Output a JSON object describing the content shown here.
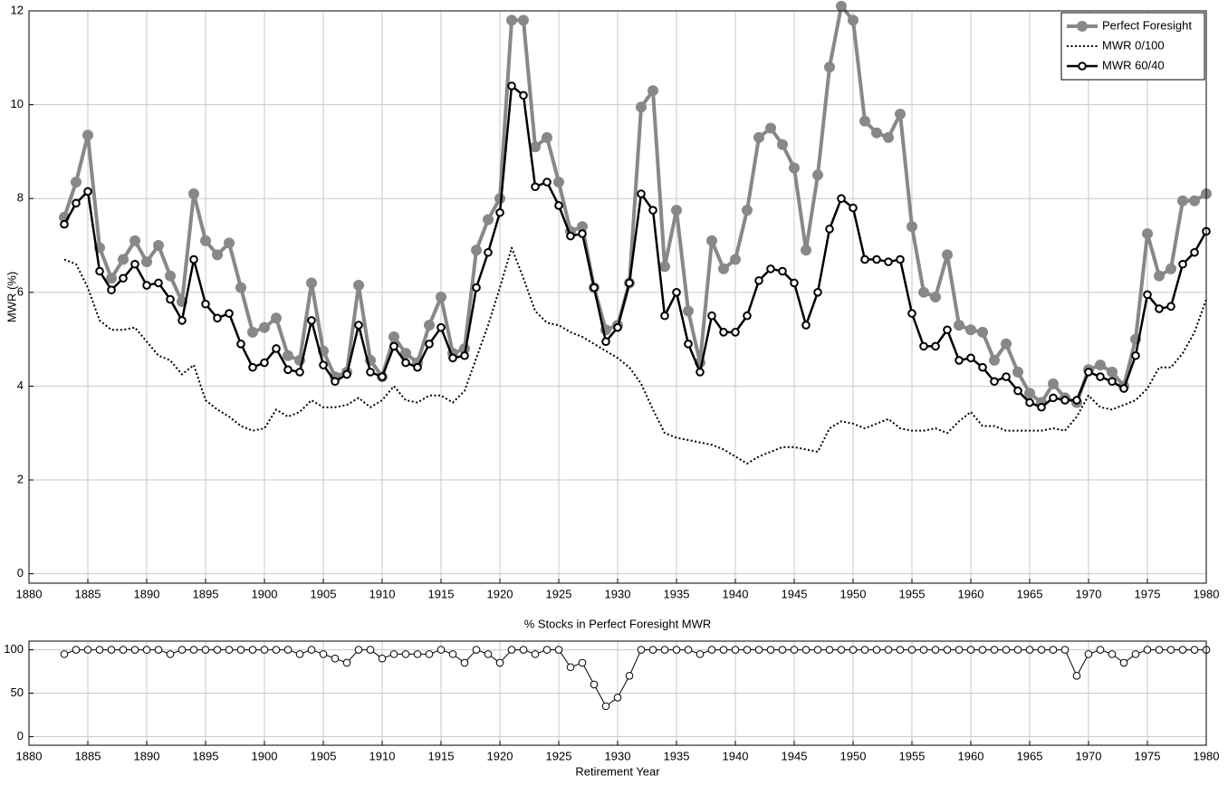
{
  "chart_data": [
    {
      "type": "line",
      "ylabel": "MWR (%)",
      "x": [
        1883,
        1884,
        1885,
        1886,
        1887,
        1888,
        1889,
        1890,
        1891,
        1892,
        1893,
        1894,
        1895,
        1896,
        1897,
        1898,
        1899,
        1900,
        1901,
        1902,
        1903,
        1904,
        1905,
        1906,
        1907,
        1908,
        1909,
        1910,
        1911,
        1912,
        1913,
        1914,
        1915,
        1916,
        1917,
        1918,
        1919,
        1920,
        1921,
        1922,
        1923,
        1924,
        1925,
        1926,
        1927,
        1928,
        1929,
        1930,
        1931,
        1932,
        1933,
        1934,
        1935,
        1936,
        1937,
        1938,
        1939,
        1940,
        1941,
        1942,
        1943,
        1944,
        1945,
        1946,
        1947,
        1948,
        1949,
        1950,
        1951,
        1952,
        1953,
        1954,
        1955,
        1956,
        1957,
        1958,
        1959,
        1960,
        1961,
        1962,
        1963,
        1964,
        1965,
        1966,
        1967,
        1968,
        1969,
        1970,
        1971,
        1972,
        1973,
        1974,
        1975,
        1976,
        1977,
        1978,
        1979,
        1980
      ],
      "series": [
        {
          "name": "Perfect Foresight",
          "color": "#888888",
          "linewidth": 4,
          "linestyle": "solid",
          "marker": "o",
          "marker_fill": "#888888",
          "values": [
            7.6,
            8.35,
            9.35,
            6.95,
            6.3,
            6.7,
            7.1,
            6.65,
            7.0,
            6.35,
            5.8,
            8.1,
            7.1,
            6.8,
            7.05,
            6.1,
            5.15,
            5.25,
            5.45,
            4.65,
            4.55,
            6.2,
            4.75,
            4.2,
            4.3,
            6.15,
            4.55,
            4.2,
            5.05,
            4.7,
            4.5,
            5.3,
            5.9,
            4.7,
            4.8,
            6.9,
            7.55,
            8.0,
            11.8,
            11.8,
            9.1,
            9.3,
            8.35,
            7.3,
            7.4,
            6.1,
            5.2,
            5.3,
            6.2,
            9.95,
            10.3,
            6.55,
            7.75,
            5.6,
            4.5,
            7.1,
            6.5,
            6.7,
            7.75,
            9.3,
            9.5,
            9.15,
            8.65,
            6.9,
            8.5,
            10.8,
            12.1,
            11.8,
            9.65,
            9.4,
            9.3,
            9.8,
            7.4,
            6.0,
            5.9,
            6.8,
            5.3,
            5.2,
            5.15,
            4.55,
            4.9,
            4.3,
            3.85,
            3.65,
            4.05,
            3.75,
            3.65,
            4.35,
            4.45,
            4.3,
            4.0,
            5.0,
            7.25,
            6.35,
            6.5,
            7.95,
            7.95,
            8.1
          ]
        },
        {
          "name": "MWR 0/100",
          "color": "#000000",
          "linewidth": 2,
          "linestyle": "dotted",
          "values": [
            6.7,
            6.6,
            6.1,
            5.4,
            5.2,
            5.2,
            5.25,
            4.95,
            4.65,
            4.55,
            4.25,
            4.45,
            3.7,
            3.5,
            3.35,
            3.15,
            3.05,
            3.1,
            3.5,
            3.35,
            3.45,
            3.7,
            3.55,
            3.55,
            3.6,
            3.75,
            3.55,
            3.7,
            4.0,
            3.7,
            3.65,
            3.8,
            3.8,
            3.65,
            3.9,
            4.6,
            5.3,
            6.1,
            6.95,
            6.3,
            5.6,
            5.35,
            5.3,
            5.15,
            5.05,
            4.9,
            4.75,
            4.6,
            4.4,
            4.05,
            3.5,
            3.0,
            2.9,
            2.85,
            2.8,
            2.75,
            2.65,
            2.5,
            2.35,
            2.5,
            2.6,
            2.7,
            2.7,
            2.65,
            2.6,
            3.1,
            3.25,
            3.2,
            3.1,
            3.2,
            3.3,
            3.1,
            3.05,
            3.05,
            3.1,
            3.0,
            3.25,
            3.45,
            3.15,
            3.15,
            3.05,
            3.05,
            3.05,
            3.05,
            3.1,
            3.05,
            3.35,
            3.8,
            3.55,
            3.5,
            3.6,
            3.7,
            3.95,
            4.4,
            4.4,
            4.7,
            5.15,
            5.85
          ]
        },
        {
          "name": "MWR 60/40",
          "color": "#000000",
          "linewidth": 2.5,
          "linestyle": "solid",
          "marker": "o",
          "marker_fill": "#ffffff",
          "values": [
            7.45,
            7.9,
            8.15,
            6.45,
            6.05,
            6.3,
            6.6,
            6.15,
            6.2,
            5.85,
            5.4,
            6.7,
            5.75,
            5.45,
            5.55,
            4.9,
            4.4,
            4.5,
            4.8,
            4.35,
            4.3,
            5.4,
            4.45,
            4.1,
            4.25,
            5.3,
            4.3,
            4.2,
            4.85,
            4.5,
            4.4,
            4.9,
            5.25,
            4.6,
            4.65,
            6.1,
            6.85,
            7.7,
            10.4,
            10.2,
            8.25,
            8.35,
            7.85,
            7.2,
            7.25,
            6.1,
            4.95,
            5.25,
            6.2,
            8.1,
            7.75,
            5.5,
            6.0,
            4.9,
            4.3,
            5.5,
            5.15,
            5.15,
            5.5,
            6.25,
            6.5,
            6.45,
            6.2,
            5.3,
            6.0,
            7.35,
            8.0,
            7.8,
            6.7,
            6.7,
            6.65,
            6.7,
            5.55,
            4.85,
            4.85,
            5.2,
            4.55,
            4.6,
            4.4,
            4.1,
            4.2,
            3.9,
            3.65,
            3.55,
            3.75,
            3.7,
            3.7,
            4.3,
            4.2,
            4.1,
            3.95,
            4.65,
            5.95,
            5.65,
            5.7,
            6.6,
            6.85,
            7.3
          ]
        }
      ],
      "xlim": [
        1880,
        1980
      ],
      "xticks": [
        1880,
        1885,
        1890,
        1895,
        1900,
        1905,
        1910,
        1915,
        1920,
        1925,
        1930,
        1935,
        1940,
        1945,
        1950,
        1955,
        1960,
        1965,
        1970,
        1975,
        1980
      ],
      "ylim": [
        -0.2,
        12
      ],
      "yticks": [
        0,
        2,
        4,
        6,
        8,
        10,
        12
      ],
      "grid": true,
      "legend": "upper right"
    },
    {
      "type": "line",
      "title": "% Stocks in Perfect Foresight MWR",
      "xlabel": "Retirement Year",
      "x": [
        1883,
        1884,
        1885,
        1886,
        1887,
        1888,
        1889,
        1890,
        1891,
        1892,
        1893,
        1894,
        1895,
        1896,
        1897,
        1898,
        1899,
        1900,
        1901,
        1902,
        1903,
        1904,
        1905,
        1906,
        1907,
        1908,
        1909,
        1910,
        1911,
        1912,
        1913,
        1914,
        1915,
        1916,
        1917,
        1918,
        1919,
        1920,
        1921,
        1922,
        1923,
        1924,
        1925,
        1926,
        1927,
        1928,
        1929,
        1930,
        1931,
        1932,
        1933,
        1934,
        1935,
        1936,
        1937,
        1938,
        1939,
        1940,
        1941,
        1942,
        1943,
        1944,
        1945,
        1946,
        1947,
        1948,
        1949,
        1950,
        1951,
        1952,
        1953,
        1954,
        1955,
        1956,
        1957,
        1958,
        1959,
        1960,
        1961,
        1962,
        1963,
        1964,
        1965,
        1966,
        1967,
        1968,
        1969,
        1970,
        1971,
        1972,
        1973,
        1974,
        1975,
        1976,
        1977,
        1978,
        1979,
        1980
      ],
      "values": [
        95,
        100,
        100,
        100,
        100,
        100,
        100,
        100,
        100,
        95,
        100,
        100,
        100,
        100,
        100,
        100,
        100,
        100,
        100,
        100,
        95,
        100,
        95,
        90,
        85,
        100,
        100,
        90,
        95,
        95,
        95,
        95,
        100,
        95,
        85,
        100,
        95,
        85,
        100,
        100,
        95,
        100,
        100,
        80,
        85,
        60,
        35,
        45,
        70,
        100,
        100,
        100,
        100,
        100,
        95,
        100,
        100,
        100,
        100,
        100,
        100,
        100,
        100,
        100,
        100,
        100,
        100,
        100,
        100,
        100,
        100,
        100,
        100,
        100,
        100,
        100,
        100,
        100,
        100,
        100,
        100,
        100,
        100,
        100,
        100,
        100,
        70,
        95,
        100,
        95,
        85,
        95,
        100,
        100,
        100,
        100,
        100,
        100
      ],
      "color": "#000000",
      "linewidth": 1,
      "marker": "o",
      "marker_fill": "#ffffff",
      "xlim": [
        1880,
        1980
      ],
      "xticks": [
        1880,
        1885,
        1890,
        1895,
        1900,
        1905,
        1910,
        1915,
        1920,
        1925,
        1930,
        1935,
        1940,
        1945,
        1950,
        1955,
        1960,
        1965,
        1970,
        1975,
        1980
      ],
      "ylim": [
        -10,
        110
      ],
      "yticks": [
        0,
        50,
        100
      ],
      "grid": true
    }
  ]
}
